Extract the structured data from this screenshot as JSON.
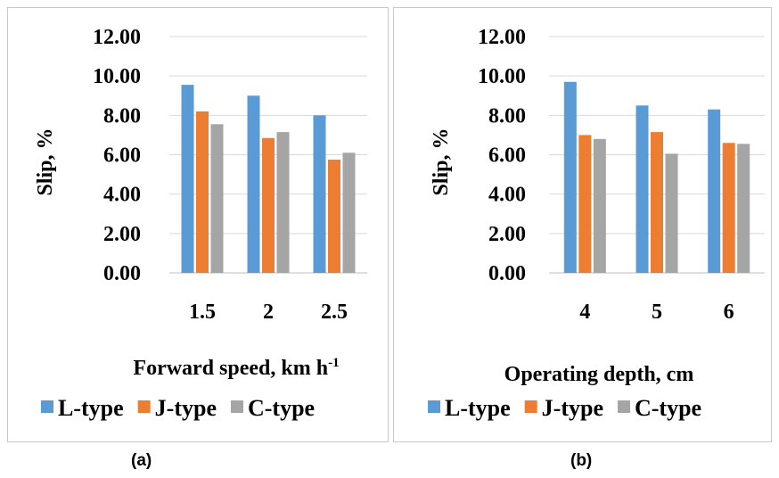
{
  "chart_data": [
    {
      "type": "bar",
      "panel_label": "(a)",
      "categories": [
        "1.5",
        "2",
        "2.5"
      ],
      "series": [
        {
          "name": "L-type",
          "values": [
            9.55,
            9.0,
            8.0
          ]
        },
        {
          "name": "J-type",
          "values": [
            8.2,
            6.85,
            5.75
          ]
        },
        {
          "name": "C-type",
          "values": [
            7.55,
            7.15,
            6.1
          ]
        }
      ],
      "ylabel": "Slip, %",
      "xlabel": "Forward speed, km h",
      "xlabel_sup": "-1",
      "ylim": [
        0,
        12
      ],
      "yticks": [
        "0.00",
        "2.00",
        "4.00",
        "6.00",
        "8.00",
        "10.00",
        "12.00"
      ],
      "grid": true,
      "legend_position": "bottom"
    },
    {
      "type": "bar",
      "panel_label": "(b)",
      "categories": [
        "4",
        "5",
        "6"
      ],
      "series": [
        {
          "name": "L-type",
          "values": [
            9.7,
            8.5,
            8.3
          ]
        },
        {
          "name": "J-type",
          "values": [
            7.0,
            7.15,
            6.6
          ]
        },
        {
          "name": "C-type",
          "values": [
            6.8,
            6.05,
            6.55
          ]
        }
      ],
      "ylabel": "Slip, %",
      "xlabel": "Operating depth, cm",
      "xlabel_sup": "",
      "ylim": [
        0,
        12
      ],
      "yticks": [
        "0.00",
        "2.00",
        "4.00",
        "6.00",
        "8.00",
        "10.00",
        "12.00"
      ],
      "grid": true,
      "legend_position": "bottom"
    }
  ],
  "colors": {
    "L-type": "#5b9bd5",
    "J-type": "#ed7d31",
    "C-type": "#a5a5a5",
    "grid": "#d9d9d9",
    "axis": "#bfbfbf"
  }
}
